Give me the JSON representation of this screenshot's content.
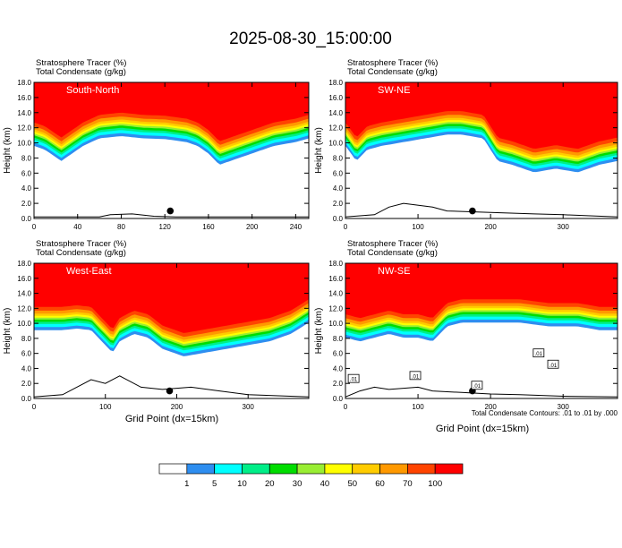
{
  "figure": {
    "title": "2025-08-30_15:00:00",
    "footnote": "Total Condensate Contours: .01 to .01 by .000",
    "xlabel": "Grid Point (dx=15km)",
    "ylabel": "Height (km)"
  },
  "colorbar": {
    "boundaries": [
      "1",
      "5",
      "10",
      "20",
      "30",
      "40",
      "50",
      "60",
      "70",
      "100"
    ],
    "colors": [
      "#ffffff",
      "#2e8ef0",
      "#00ffff",
      "#00ee88",
      "#00dd00",
      "#99ee33",
      "#ffff00",
      "#ffcc00",
      "#ff9900",
      "#ff4400",
      "#ff0000"
    ]
  },
  "chart_data": [
    {
      "type": "heatmap",
      "panel_label": "South-North",
      "header1": "Stratosphere Tracer   (%)",
      "header2": "Total Condensate   (g/kg)",
      "xlim": [
        0,
        252
      ],
      "ylim": [
        0,
        18
      ],
      "xticks": [
        "0",
        "40",
        "80",
        "120",
        "160",
        "200",
        "240"
      ],
      "yticks": [
        "0.0",
        "2.0",
        "4.0",
        "6.0",
        "8.0",
        "10.0",
        "12.0",
        "14.0",
        "16.0",
        "18.0"
      ],
      "marker": {
        "x": 125,
        "y": 1.0
      },
      "tracer_boundary": {
        "x": [
          0,
          10,
          25,
          35,
          45,
          60,
          80,
          100,
          120,
          140,
          150,
          160,
          170,
          180,
          200,
          220,
          240,
          252
        ],
        "y": [
          11.5,
          11.0,
          9.5,
          10.5,
          11.5,
          12.5,
          12.8,
          12.5,
          12.4,
          12.0,
          11.5,
          10.5,
          9.0,
          9.5,
          10.5,
          11.5,
          12.0,
          12.5
        ]
      },
      "terrain": {
        "x": [
          0,
          60,
          70,
          90,
          110,
          130,
          150,
          252
        ],
        "y": [
          0.2,
          0.2,
          0.5,
          0.6,
          0.3,
          0.2,
          0.2,
          0.2
        ]
      }
    },
    {
      "type": "heatmap",
      "panel_label": "SW-NE",
      "header1": "Stratosphere Tracer   (%)",
      "header2": "Total Condensate   (g/kg)",
      "xlim": [
        0,
        375
      ],
      "ylim": [
        0,
        18
      ],
      "xticks": [
        "0",
        "100",
        "200",
        "300"
      ],
      "yticks": [
        "0.0",
        "2.0",
        "4.0",
        "6.0",
        "8.0",
        "10.0",
        "12.0",
        "14.0",
        "16.0",
        "18.0"
      ],
      "marker": {
        "x": 175,
        "y": 1.0
      },
      "tracer_boundary": {
        "x": [
          0,
          15,
          30,
          50,
          80,
          110,
          140,
          160,
          190,
          200,
          210,
          230,
          260,
          290,
          320,
          350,
          375
        ],
        "y": [
          11.5,
          9.5,
          11.0,
          11.5,
          12.0,
          12.5,
          13.0,
          13.0,
          12.5,
          11.0,
          9.5,
          9.0,
          8.0,
          8.5,
          8.0,
          9.0,
          9.5
        ]
      },
      "terrain": {
        "x": [
          0,
          40,
          60,
          80,
          120,
          140,
          200,
          260,
          300,
          375
        ],
        "y": [
          0.2,
          0.5,
          1.5,
          2.0,
          1.5,
          1.0,
          0.8,
          0.6,
          0.5,
          0.2
        ]
      }
    },
    {
      "type": "heatmap",
      "panel_label": "West-East",
      "header1": "Stratosphere Tracer   (%)",
      "header2": "Total Condensate   (g/kg)",
      "xlim": [
        0,
        385
      ],
      "ylim": [
        0,
        18
      ],
      "xticks": [
        "0",
        "100",
        "200",
        "300"
      ],
      "yticks": [
        "0.0",
        "2.0",
        "4.0",
        "6.0",
        "8.0",
        "10.0",
        "12.0",
        "14.0",
        "16.0",
        "18.0"
      ],
      "marker": {
        "x": 190,
        "y": 1.0
      },
      "tracer_boundary": {
        "x": [
          0,
          20,
          40,
          60,
          80,
          95,
          110,
          120,
          140,
          160,
          180,
          210,
          240,
          270,
          300,
          330,
          360,
          385
        ],
        "y": [
          11.0,
          11.0,
          11.0,
          11.2,
          11.0,
          9.5,
          8.0,
          9.5,
          10.5,
          10.0,
          8.5,
          7.5,
          8.0,
          8.5,
          9.0,
          9.5,
          10.5,
          12.0
        ]
      },
      "terrain": {
        "x": [
          0,
          40,
          60,
          80,
          100,
          120,
          150,
          180,
          220,
          260,
          300,
          385
        ],
        "y": [
          0.2,
          0.5,
          1.5,
          2.5,
          2.0,
          3.0,
          1.5,
          1.2,
          1.5,
          1.0,
          0.5,
          0.2
        ]
      }
    },
    {
      "type": "heatmap",
      "panel_label": "NW-SE",
      "header1": "Stratosphere Tracer   (%)",
      "header2": "Total Condensate   (g/kg)",
      "xlim": [
        0,
        375
      ],
      "ylim": [
        0,
        18
      ],
      "xticks": [
        "0",
        "100",
        "200",
        "300"
      ],
      "yticks": [
        "0.0",
        "2.0",
        "4.0",
        "6.0",
        "8.0",
        "10.0",
        "12.0",
        "14.0",
        "16.0",
        "18.0"
      ],
      "marker": {
        "x": 175,
        "y": 1.0
      },
      "contour_label": ".01",
      "tracer_boundary": {
        "x": [
          0,
          20,
          40,
          60,
          80,
          100,
          120,
          130,
          140,
          160,
          200,
          240,
          280,
          320,
          350,
          375
        ],
        "y": [
          10.0,
          9.5,
          10.0,
          10.5,
          10.0,
          10.0,
          9.5,
          10.5,
          11.5,
          12.0,
          12.0,
          12.0,
          11.5,
          11.5,
          11.0,
          11.0
        ]
      },
      "terrain": {
        "x": [
          0,
          20,
          40,
          60,
          100,
          120,
          160,
          200,
          240,
          300,
          375
        ],
        "y": [
          0.2,
          1.0,
          1.5,
          1.2,
          1.5,
          1.0,
          0.8,
          0.6,
          0.5,
          0.3,
          0.2
        ]
      }
    }
  ]
}
